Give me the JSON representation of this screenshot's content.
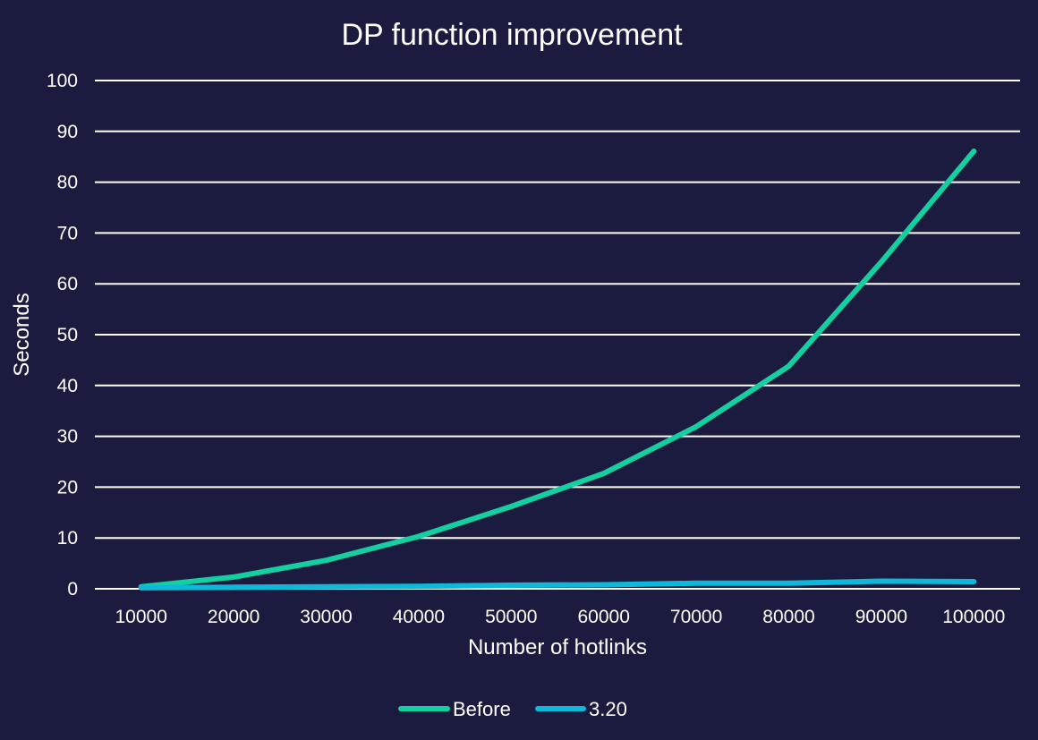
{
  "chart_data": {
    "type": "line",
    "title": "DP function improvement",
    "xlabel": "Number of hotlinks",
    "ylabel": "Seconds",
    "categories": [
      "10000",
      "20000",
      "30000",
      "40000",
      "50000",
      "60000",
      "70000",
      "80000",
      "90000",
      "100000"
    ],
    "ylim": [
      0,
      100
    ],
    "yticks": [
      "0",
      "10",
      "20",
      "30",
      "40",
      "50",
      "60",
      "70",
      "80",
      "90",
      "100"
    ],
    "grid": true,
    "legend_position": "bottom",
    "series": [
      {
        "name": "Before",
        "color": "#14d0a0",
        "values": [
          0.4,
          2.3,
          5.6,
          10.3,
          16.2,
          22.7,
          31.9,
          43.8,
          64.3,
          86.1
        ]
      },
      {
        "name": "3.20",
        "color": "#10b8d8",
        "values": [
          0.2,
          0.3,
          0.4,
          0.5,
          0.7,
          0.8,
          1.1,
          1.1,
          1.5,
          1.4
        ]
      }
    ]
  },
  "colors": {
    "background": "#1b1b3f",
    "text": "#ffffff",
    "grid": "#ffffff"
  }
}
